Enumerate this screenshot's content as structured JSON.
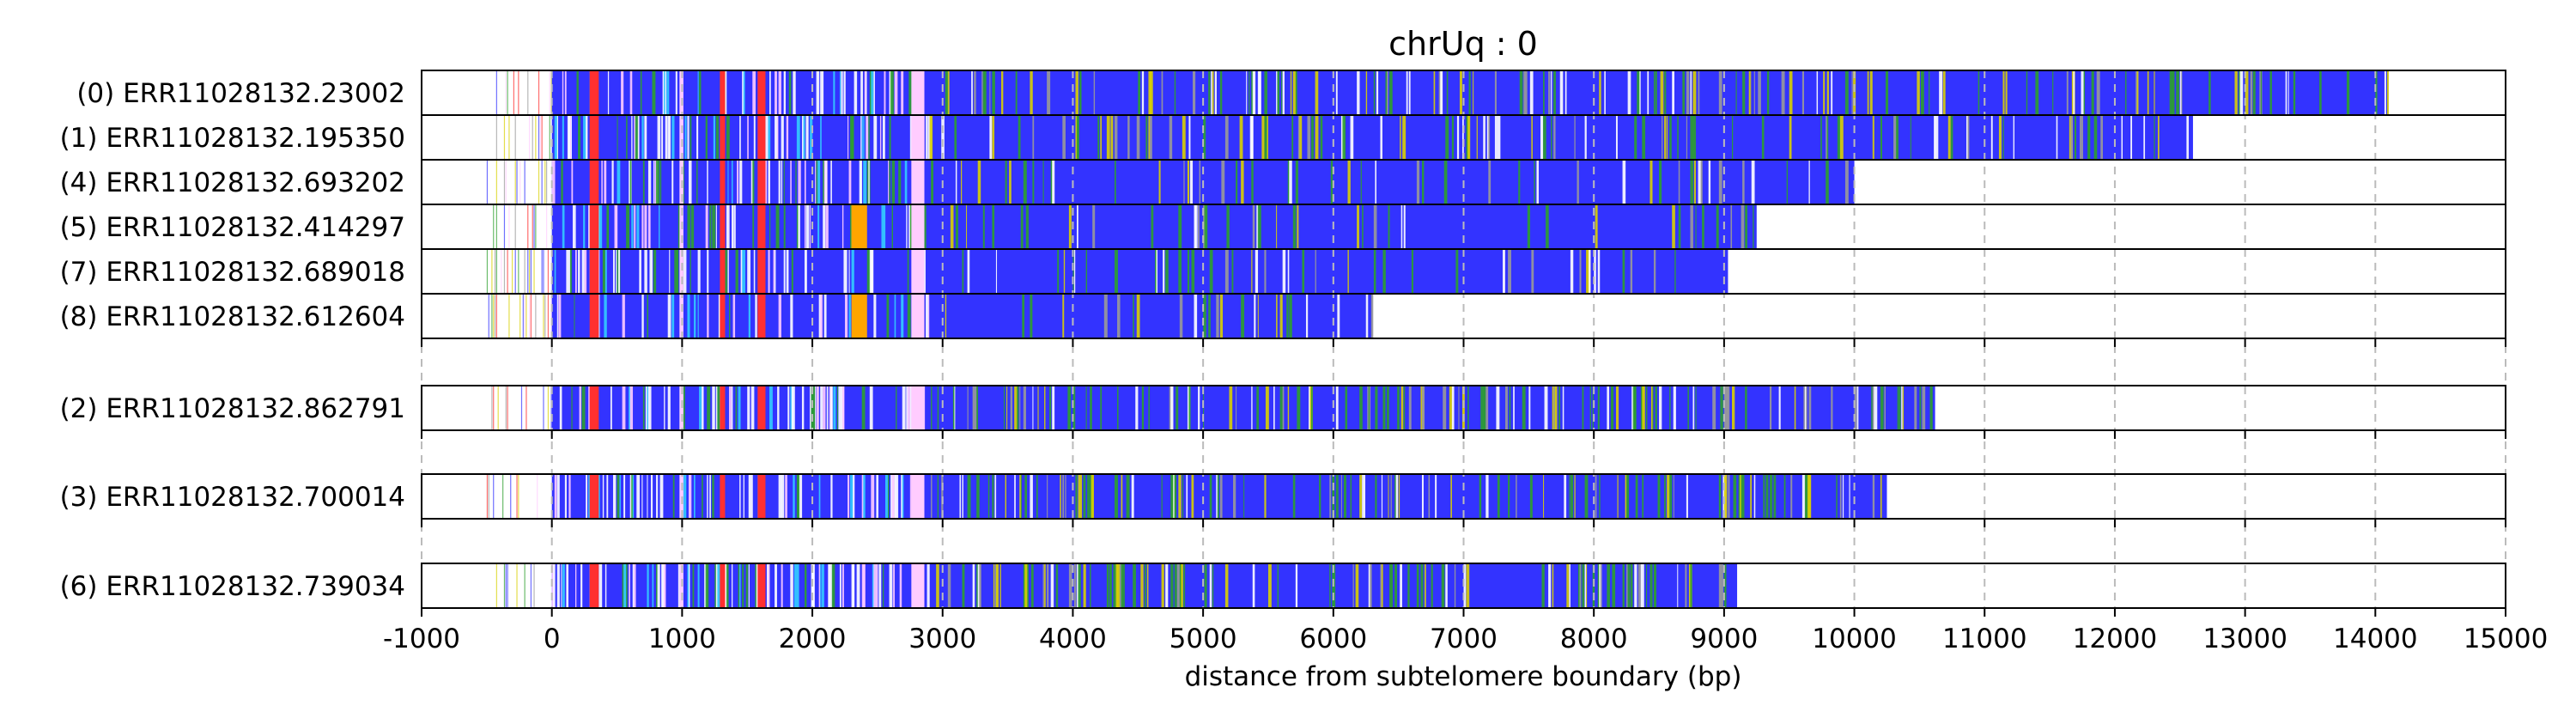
{
  "chart_data": {
    "type": "read-track",
    "title": "chrUq : 0",
    "xlabel": "distance from subtelomere boundary (bp)",
    "xlim": [
      -1000,
      15000
    ],
    "xticks": [
      "-1000",
      "0",
      "1000",
      "2000",
      "3000",
      "4000",
      "5000",
      "6000",
      "7000",
      "8000",
      "9000",
      "10000",
      "11000",
      "12000",
      "13000",
      "14000",
      "15000"
    ],
    "grid": "dashed vertical at each x tick",
    "groups": [
      {
        "reads": [
          {
            "label": "(0) ERR11028132.23002",
            "start": -500,
            "end": 14100
          },
          {
            "label": "(1) ERR11028132.195350",
            "start": -500,
            "end": 12600
          },
          {
            "label": "(4) ERR11028132.693202",
            "start": -500,
            "end": 10000
          },
          {
            "label": "(5) ERR11028132.414297",
            "start": -500,
            "end": 9250
          },
          {
            "label": "(7) ERR11028132.689018",
            "start": -500,
            "end": 9030
          },
          {
            "label": "(8) ERR11028132.612604",
            "start": -500,
            "end": 6300
          }
        ]
      },
      {
        "reads": [
          {
            "label": "(2) ERR11028132.862791",
            "start": -500,
            "end": 10620
          }
        ]
      },
      {
        "reads": [
          {
            "label": "(3) ERR11028132.700014",
            "start": -500,
            "end": 10250
          }
        ]
      },
      {
        "reads": [
          {
            "label": "(6) ERR11028132.739034",
            "start": -500,
            "end": 9100
          }
        ]
      }
    ],
    "colors": {
      "base": "#3333ff",
      "green": "#2ca02c",
      "yellow": "#d9d000",
      "red": "#ff3030",
      "pink": "#ffccff",
      "orange": "#ffa500",
      "cyan": "#33ccff",
      "grey": "#999999",
      "white": "#ffffff"
    }
  }
}
